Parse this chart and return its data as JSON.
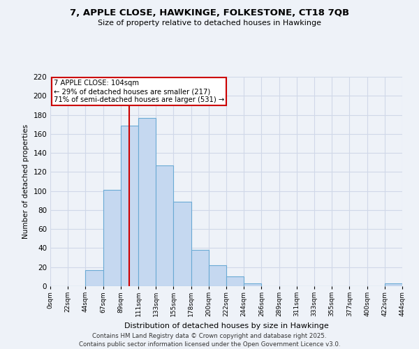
{
  "title1": "7, APPLE CLOSE, HAWKINGE, FOLKESTONE, CT18 7QB",
  "title2": "Size of property relative to detached houses in Hawkinge",
  "xlabel": "Distribution of detached houses by size in Hawkinge",
  "ylabel": "Number of detached properties",
  "bin_labels": [
    "0sqm",
    "22sqm",
    "44sqm",
    "67sqm",
    "89sqm",
    "111sqm",
    "133sqm",
    "155sqm",
    "178sqm",
    "200sqm",
    "222sqm",
    "244sqm",
    "266sqm",
    "289sqm",
    "311sqm",
    "333sqm",
    "355sqm",
    "377sqm",
    "400sqm",
    "422sqm",
    "444sqm"
  ],
  "bar_values": [
    0,
    0,
    17,
    101,
    169,
    177,
    127,
    89,
    38,
    22,
    10,
    3,
    0,
    0,
    0,
    0,
    0,
    0,
    0,
    3
  ],
  "bar_color": "#c5d8f0",
  "bar_edge_color": "#6aaad4",
  "vline_x_index": 4.5,
  "vline_label": "7 APPLE CLOSE: 104sqm",
  "annotation_line1": "← 29% of detached houses are smaller (217)",
  "annotation_line2": "71% of semi-detached houses are larger (531) →",
  "annotation_box_color": "#ffffff",
  "annotation_box_edge": "#cc0000",
  "vline_color": "#cc0000",
  "ylim": [
    0,
    220
  ],
  "yticks": [
    0,
    20,
    40,
    60,
    80,
    100,
    120,
    140,
    160,
    180,
    200,
    220
  ],
  "background_color": "#eef2f8",
  "grid_color": "#d0d8e8",
  "footer1": "Contains HM Land Registry data © Crown copyright and database right 2025.",
  "footer2": "Contains public sector information licensed under the Open Government Licence v3.0."
}
